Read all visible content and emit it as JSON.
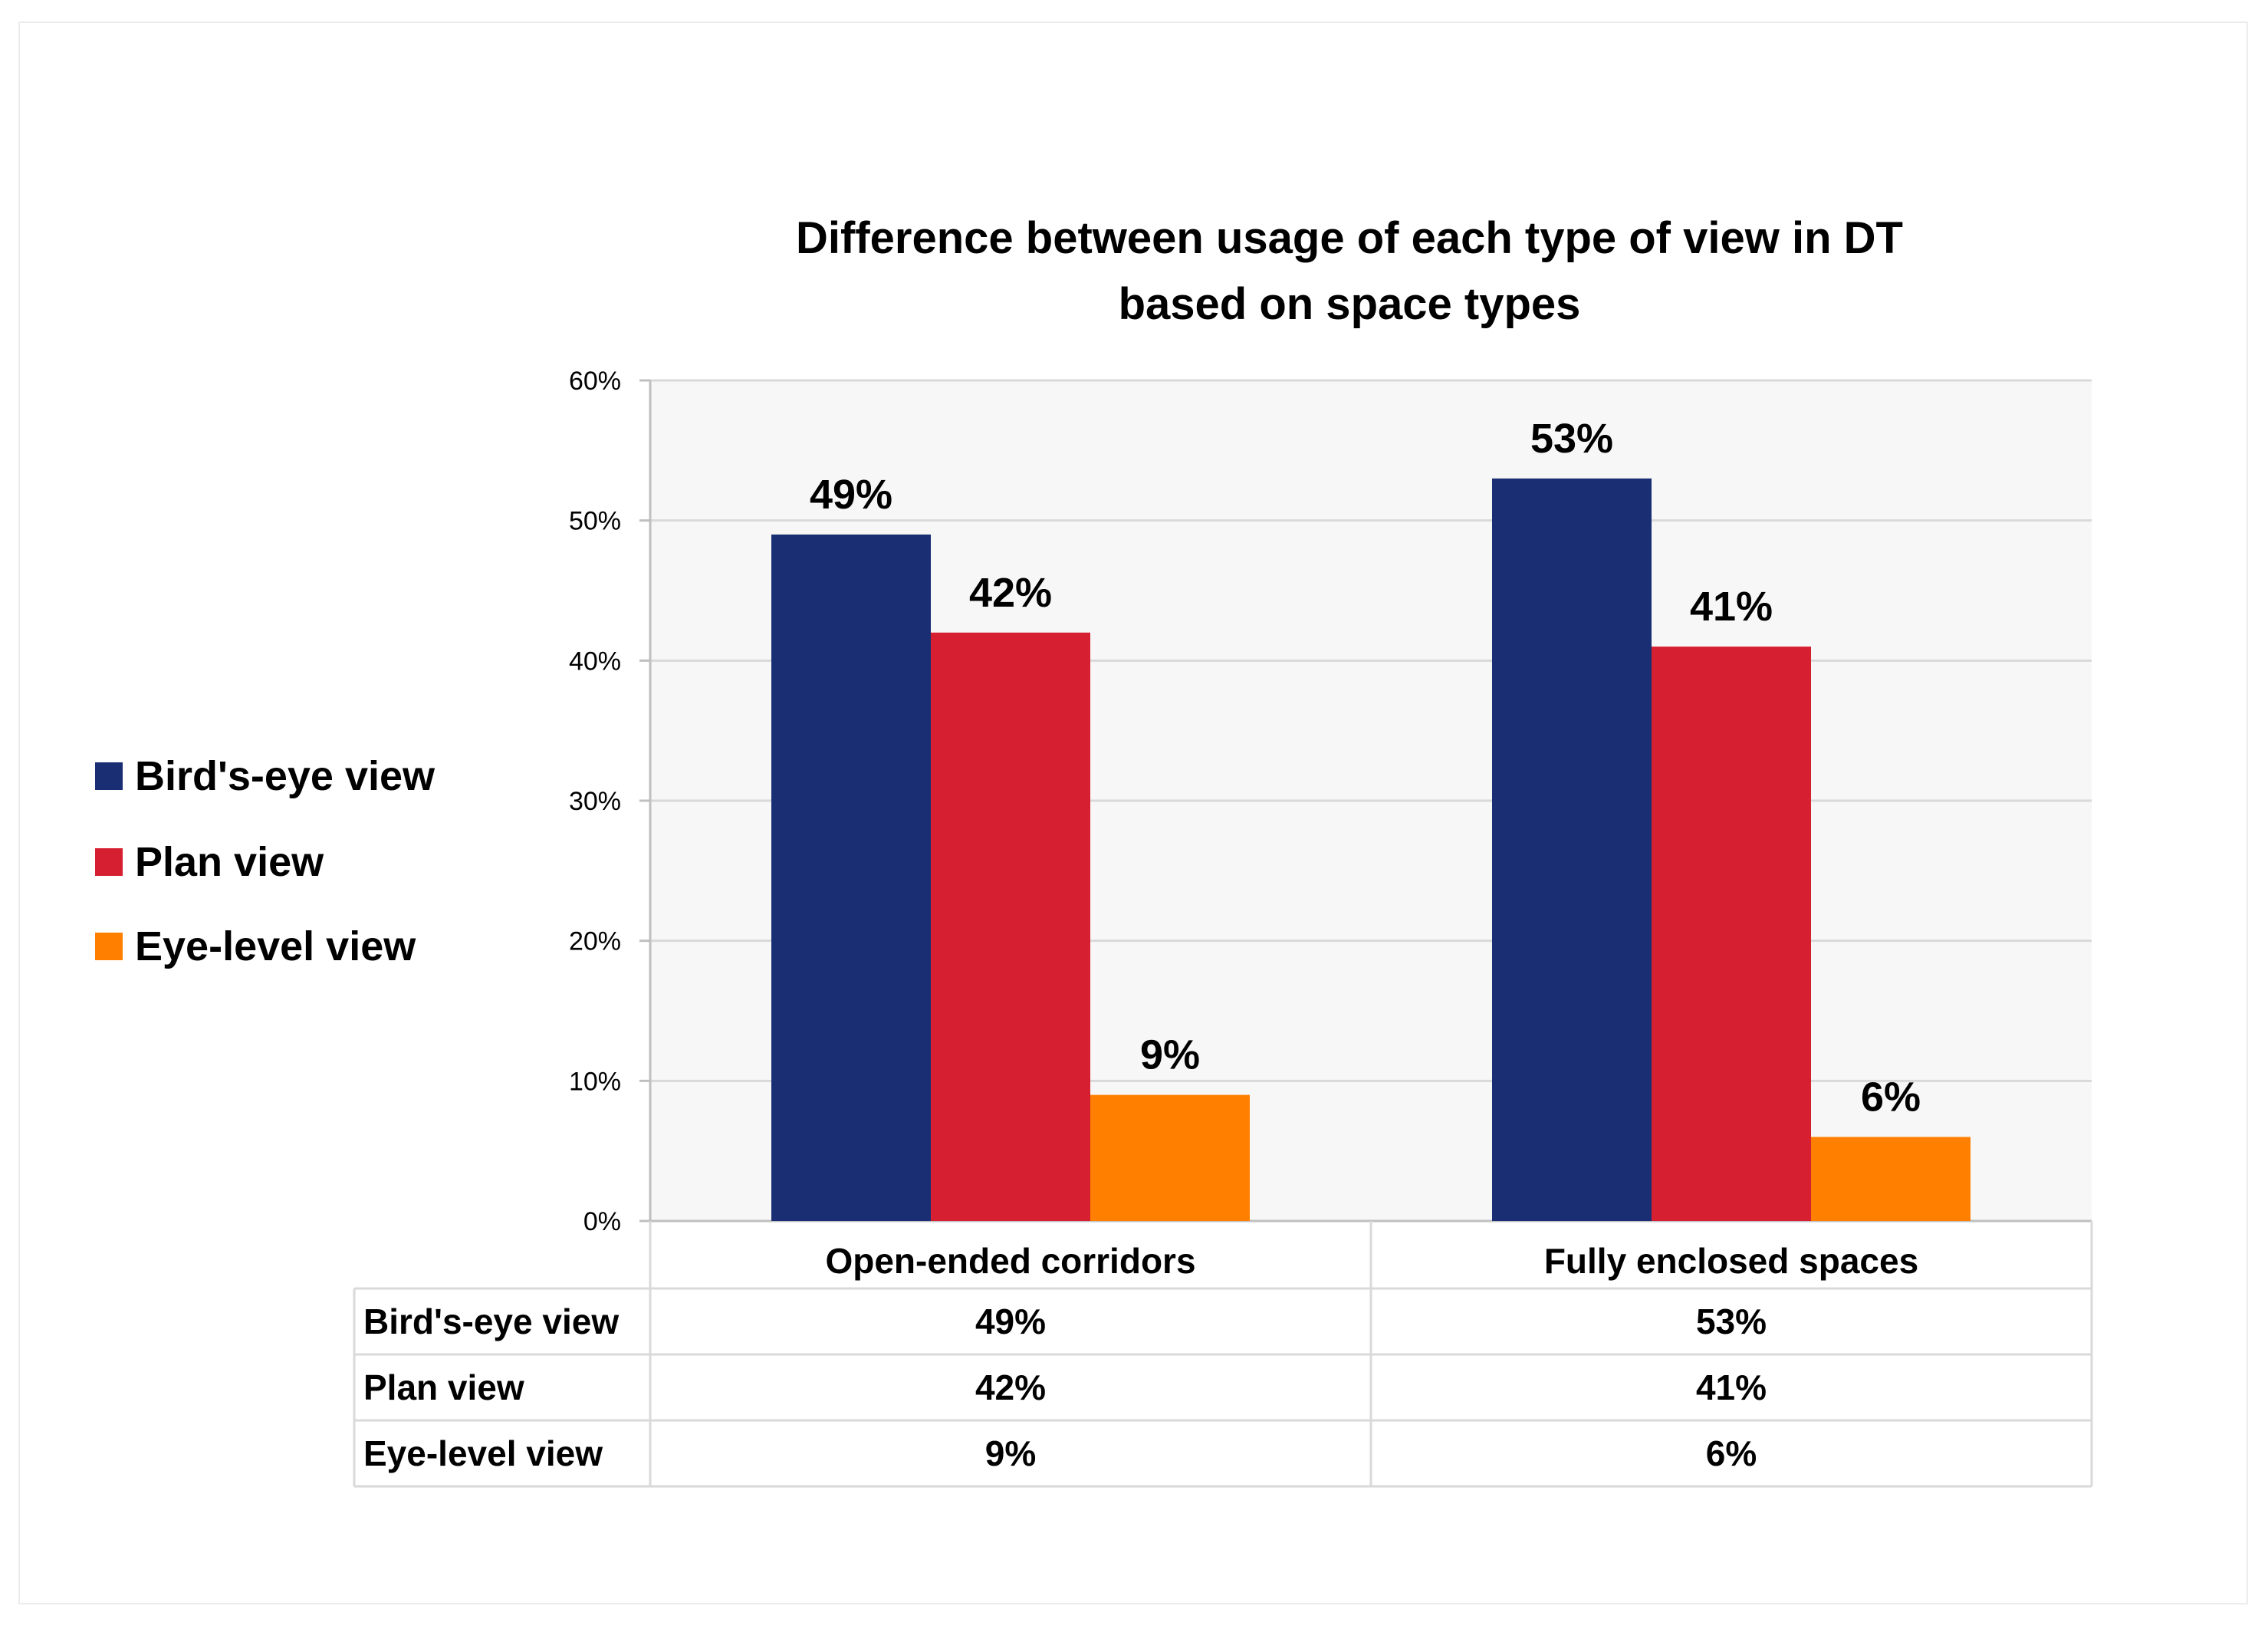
{
  "chart_data": {
    "type": "bar",
    "title": "Difference between usage of each type of view in DT based on space types",
    "title_lines": [
      "Difference between usage of each type of view in DT",
      "based on space types"
    ],
    "categories": [
      "Open-ended corridors",
      "Fully enclosed spaces"
    ],
    "series": [
      {
        "name": "Bird's-eye view",
        "values": [
          49,
          53
        ],
        "labels": [
          "49%",
          "53%"
        ],
        "color": "#1a2e73"
      },
      {
        "name": "Plan view",
        "values": [
          42,
          41
        ],
        "labels": [
          "42%",
          "41%"
        ],
        "color": "#d62032"
      },
      {
        "name": "Eye-level view",
        "values": [
          9,
          6
        ],
        "labels": [
          "9%",
          "6%"
        ],
        "color": "#ff8000"
      }
    ],
    "ylim": [
      0,
      60
    ],
    "yticks": [
      0,
      10,
      20,
      30,
      40,
      50,
      60
    ],
    "ytick_labels": [
      "0%",
      "10%",
      "20%",
      "30%",
      "40%",
      "50%",
      "60%"
    ],
    "xlabel": "",
    "ylabel": "",
    "grid": true,
    "legend_position": "left",
    "data_table": true,
    "colors": {
      "plot_background": "#f7f7f7",
      "gridline": "#d9d9d9",
      "axis": "#bfbfbf",
      "table_border": "#d9d9d9"
    }
  }
}
